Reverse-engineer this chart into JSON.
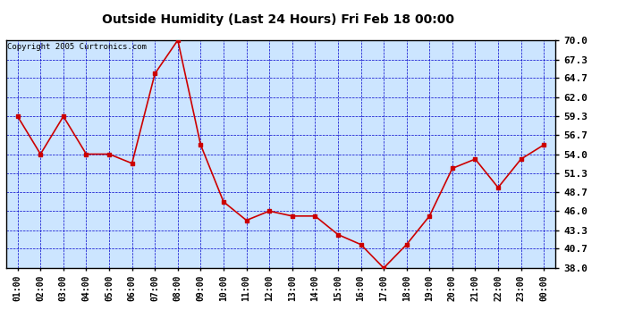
{
  "title": "Outside Humidity (Last 24 Hours) Fri Feb 18 00:00",
  "copyright": "Copyright 2005 Curtronics.com",
  "x_labels": [
    "01:00",
    "02:00",
    "03:00",
    "04:00",
    "05:00",
    "06:00",
    "07:00",
    "08:00",
    "09:00",
    "10:00",
    "11:00",
    "12:00",
    "13:00",
    "14:00",
    "15:00",
    "16:00",
    "17:00",
    "18:00",
    "19:00",
    "20:00",
    "21:00",
    "22:00",
    "23:00",
    "00:00"
  ],
  "y_values": [
    59.3,
    54.0,
    59.3,
    54.0,
    54.0,
    52.7,
    65.3,
    70.0,
    55.3,
    47.3,
    44.7,
    46.0,
    45.3,
    45.3,
    42.7,
    41.3,
    38.0,
    41.3,
    45.3,
    52.0,
    53.3,
    49.3,
    53.3,
    55.3
  ],
  "line_color": "#cc0000",
  "marker_color": "#cc0000",
  "bg_color": "#cce5ff",
  "grid_color": "#0000cc",
  "title_color": "#000000",
  "border_color": "#000000",
  "outer_bg_color": "#ffffff",
  "ylim_min": 38.0,
  "ylim_max": 70.0,
  "ytick_values": [
    38.0,
    40.7,
    43.3,
    46.0,
    48.7,
    51.3,
    54.0,
    56.7,
    59.3,
    62.0,
    64.7,
    67.3,
    70.0
  ],
  "ytick_labels": [
    "38.0",
    "40.7",
    "43.3",
    "46.0",
    "48.7",
    "51.3",
    "54.0",
    "56.7",
    "59.3",
    "62.0",
    "64.7",
    "67.3",
    "70.0"
  ]
}
